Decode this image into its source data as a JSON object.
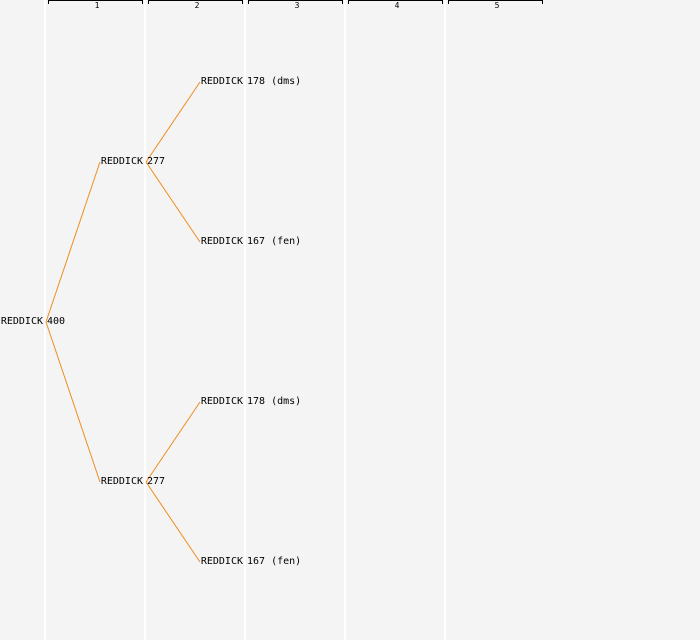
{
  "columns": [
    "1",
    "2",
    "3",
    "4",
    "5"
  ],
  "colors": {
    "edge": "#f08c1e",
    "background": "#f4f4f4",
    "column_line": "#ffffff"
  },
  "nodes": [
    {
      "id": "n0",
      "col": 0,
      "row": 0.5,
      "name": "REDDICK",
      "value": "400"
    },
    {
      "id": "n1",
      "col": 1,
      "row": 0.25,
      "name": "REDDICK",
      "value": "277"
    },
    {
      "id": "n2",
      "col": 1,
      "row": 0.75,
      "name": "REDDICK",
      "value": "277"
    },
    {
      "id": "n3",
      "col": 2,
      "row": 0.125,
      "name": "REDDICK",
      "value": "178 (dms)"
    },
    {
      "id": "n4",
      "col": 2,
      "row": 0.375,
      "name": "REDDICK",
      "value": "167 (fen)"
    },
    {
      "id": "n5",
      "col": 2,
      "row": 0.625,
      "name": "REDDICK",
      "value": "178 (dms)"
    },
    {
      "id": "n6",
      "col": 2,
      "row": 0.875,
      "name": "REDDICK",
      "value": "167 (fen)"
    }
  ],
  "edges": [
    [
      "n0",
      "n1"
    ],
    [
      "n0",
      "n2"
    ],
    [
      "n1",
      "n3"
    ],
    [
      "n1",
      "n4"
    ],
    [
      "n2",
      "n5"
    ],
    [
      "n2",
      "n6"
    ]
  ]
}
